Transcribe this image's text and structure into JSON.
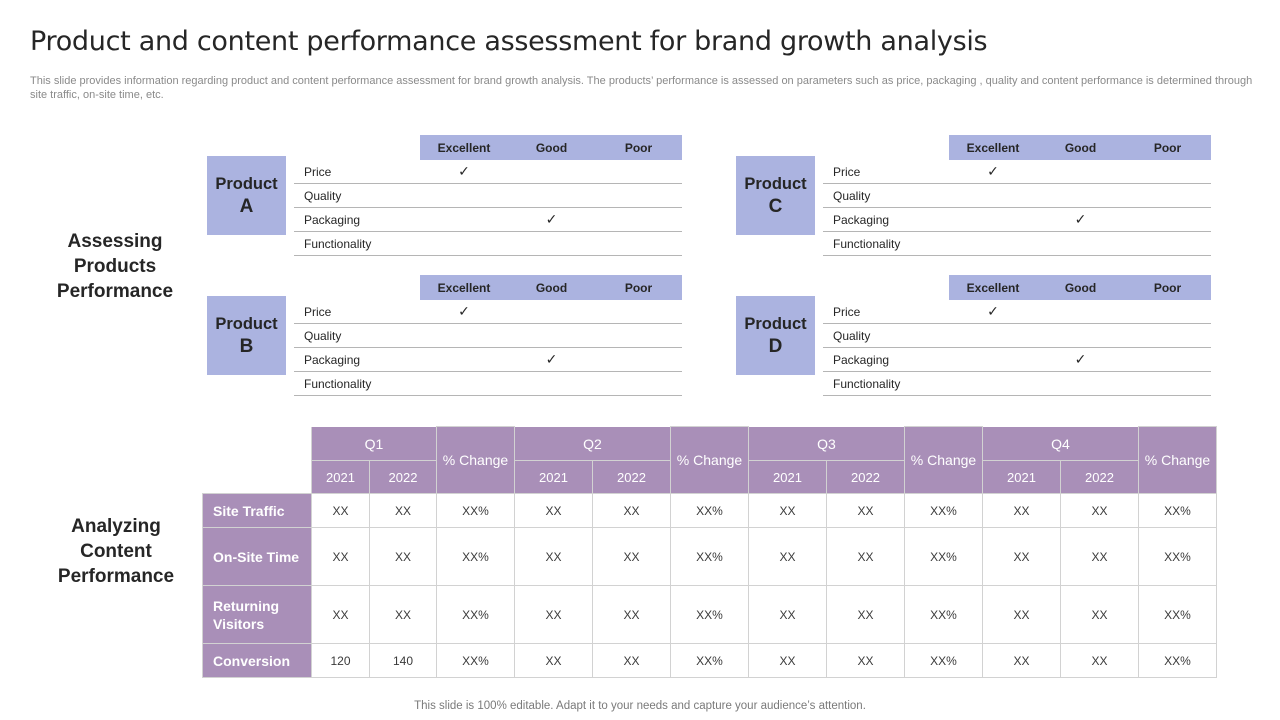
{
  "title": "Product and content performance assessment for brand growth analysis",
  "subtitle": "This slide provides information regarding product and content performance assessment for brand growth analysis. The products’ performance is assessed  on parameters such as price, packaging , quality and content performance is determined through site traffic, on-site time, etc.",
  "footer": "This slide is 100% editable. Adapt it to your needs and capture your audience’s attention.",
  "sections": {
    "products": "Assessing Products Performance",
    "content": "Analyzing Content Performance"
  },
  "products": [
    {
      "line1": "Product",
      "line2": "A",
      "headers": [
        "Excellent",
        "Good",
        "Poor"
      ],
      "rows": [
        {
          "label": "Price",
          "excellent": "✓",
          "good": "",
          "poor": ""
        },
        {
          "label": "Quality",
          "excellent": "",
          "good": "",
          "poor": ""
        },
        {
          "label": "Packaging",
          "excellent": "",
          "good": "✓",
          "poor": ""
        },
        {
          "label": "Functionality",
          "excellent": "",
          "good": "",
          "poor": ""
        }
      ]
    },
    {
      "line1": "Product",
      "line2": "B",
      "headers": [
        "Excellent",
        "Good",
        "Poor"
      ],
      "rows": [
        {
          "label": "Price",
          "excellent": "✓",
          "good": "",
          "poor": ""
        },
        {
          "label": "Quality",
          "excellent": "",
          "good": "",
          "poor": ""
        },
        {
          "label": "Packaging",
          "excellent": "",
          "good": "✓",
          "poor": ""
        },
        {
          "label": "Functionality",
          "excellent": "",
          "good": "",
          "poor": ""
        }
      ]
    },
    {
      "line1": "Product",
      "line2": "C",
      "headers": [
        "Excellent",
        "Good",
        "Poor"
      ],
      "rows": [
        {
          "label": "Price",
          "excellent": "✓",
          "good": "",
          "poor": ""
        },
        {
          "label": "Quality",
          "excellent": "",
          "good": "",
          "poor": ""
        },
        {
          "label": "Packaging",
          "excellent": "",
          "good": "✓",
          "poor": ""
        },
        {
          "label": "Functionality",
          "excellent": "",
          "good": "",
          "poor": ""
        }
      ]
    },
    {
      "line1": "Product",
      "line2": "D",
      "headers": [
        "Excellent",
        "Good",
        "Poor"
      ],
      "rows": [
        {
          "label": "Price",
          "excellent": "✓",
          "good": "",
          "poor": ""
        },
        {
          "label": "Quality",
          "excellent": "",
          "good": "",
          "poor": ""
        },
        {
          "label": "Packaging",
          "excellent": "",
          "good": "✓",
          "poor": ""
        },
        {
          "label": "Functionality",
          "excellent": "",
          "good": "",
          "poor": ""
        }
      ]
    }
  ],
  "content_table": {
    "quarters": [
      "Q1",
      "Q2",
      "Q3",
      "Q4"
    ],
    "years": [
      "2021",
      "2022"
    ],
    "change_label": "% Change",
    "rows": [
      {
        "label": "Site Traffic",
        "cells": [
          "XX",
          "XX",
          "XX%",
          "XX",
          "XX",
          "XX%",
          "XX",
          "XX",
          "XX%",
          "XX",
          "XX",
          "XX%"
        ]
      },
      {
        "label": "On-Site Time",
        "cells": [
          "XX",
          "XX",
          "XX%",
          "XX",
          "XX",
          "XX%",
          "XX",
          "XX",
          "XX%",
          "XX",
          "XX",
          "XX%"
        ]
      },
      {
        "label": "Returning Visitors",
        "cells": [
          "XX",
          "XX",
          "XX%",
          "XX",
          "XX",
          "XX%",
          "XX",
          "XX",
          "XX%",
          "XX",
          "XX",
          "XX%"
        ]
      },
      {
        "label": "Conversion",
        "cells": [
          "120",
          "140",
          "XX%",
          "XX",
          "XX",
          "XX%",
          "XX",
          "XX",
          "XX%",
          "XX",
          "XX",
          "XX%"
        ]
      }
    ]
  },
  "colors": {
    "product_accent": "#abb3e0",
    "content_accent": "#a98fb8"
  }
}
